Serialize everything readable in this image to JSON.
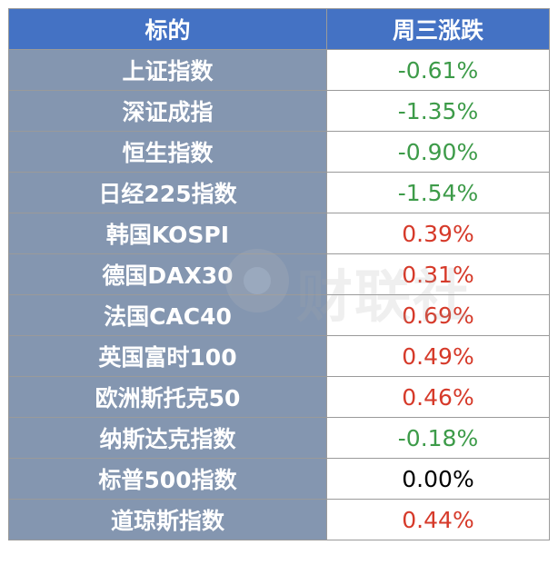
{
  "header": {
    "col_name": "标的",
    "col_change": "周三涨跌"
  },
  "rows": [
    {
      "name": "上证指数",
      "change": "-0.61%",
      "trend": "down"
    },
    {
      "name": "深证成指",
      "change": "-1.35%",
      "trend": "down"
    },
    {
      "name": "恒生指数",
      "change": "-0.90%",
      "trend": "down"
    },
    {
      "name": "日经225指数",
      "change": "-1.54%",
      "trend": "down"
    },
    {
      "name": "韩国KOSPI",
      "change": "0.39%",
      "trend": "up"
    },
    {
      "name": "德国DAX30",
      "change": "0.31%",
      "trend": "up"
    },
    {
      "name": "法国CAC40",
      "change": "0.69%",
      "trend": "up"
    },
    {
      "name": "英国富时100",
      "change": "0.49%",
      "trend": "up"
    },
    {
      "name": "欧洲斯托克50",
      "change": "0.46%",
      "trend": "up"
    },
    {
      "name": "纳斯达克指数",
      "change": "-0.18%",
      "trend": "down"
    },
    {
      "name": "标普500指数",
      "change": "0.00%",
      "trend": "flat"
    },
    {
      "name": "道琼斯指数",
      "change": "0.44%",
      "trend": "up"
    }
  ],
  "watermark": {
    "text": "财联社",
    "icon": "cls-logo-icon"
  },
  "colors": {
    "header_bg": "#4472c4",
    "name_bg": "#8496b0",
    "down": "#3d9b49",
    "up": "#d63a2a",
    "flat": "#000000"
  }
}
